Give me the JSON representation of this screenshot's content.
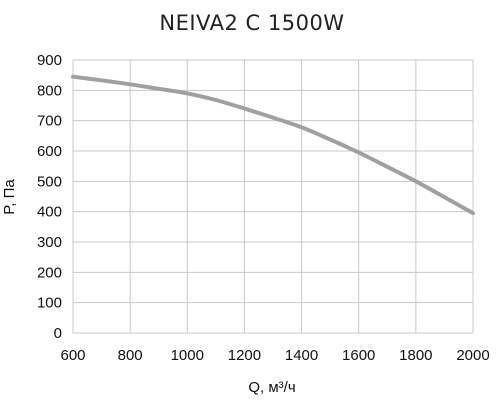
{
  "chart_data": {
    "type": "line",
    "title": "NEIVA2 C 1500W",
    "xlabel": "Q, м³/ч",
    "ylabel": "P, Па",
    "xlim": [
      600,
      2000
    ],
    "ylim": [
      0,
      900
    ],
    "x_ticks": [
      600,
      800,
      1000,
      1200,
      1400,
      1600,
      1800,
      2000
    ],
    "y_ticks": [
      0,
      100,
      200,
      300,
      400,
      500,
      600,
      700,
      800,
      900
    ],
    "grid": true,
    "series": [
      {
        "color": "#a0a0a0",
        "x": [
          600,
          700,
          800,
          900,
          1000,
          1100,
          1200,
          1300,
          1400,
          1500,
          1600,
          1700,
          1800,
          1900,
          2000
        ],
        "y": [
          845,
          833,
          820,
          805,
          790,
          768,
          740,
          710,
          678,
          638,
          595,
          548,
          500,
          448,
          395
        ]
      }
    ]
  }
}
